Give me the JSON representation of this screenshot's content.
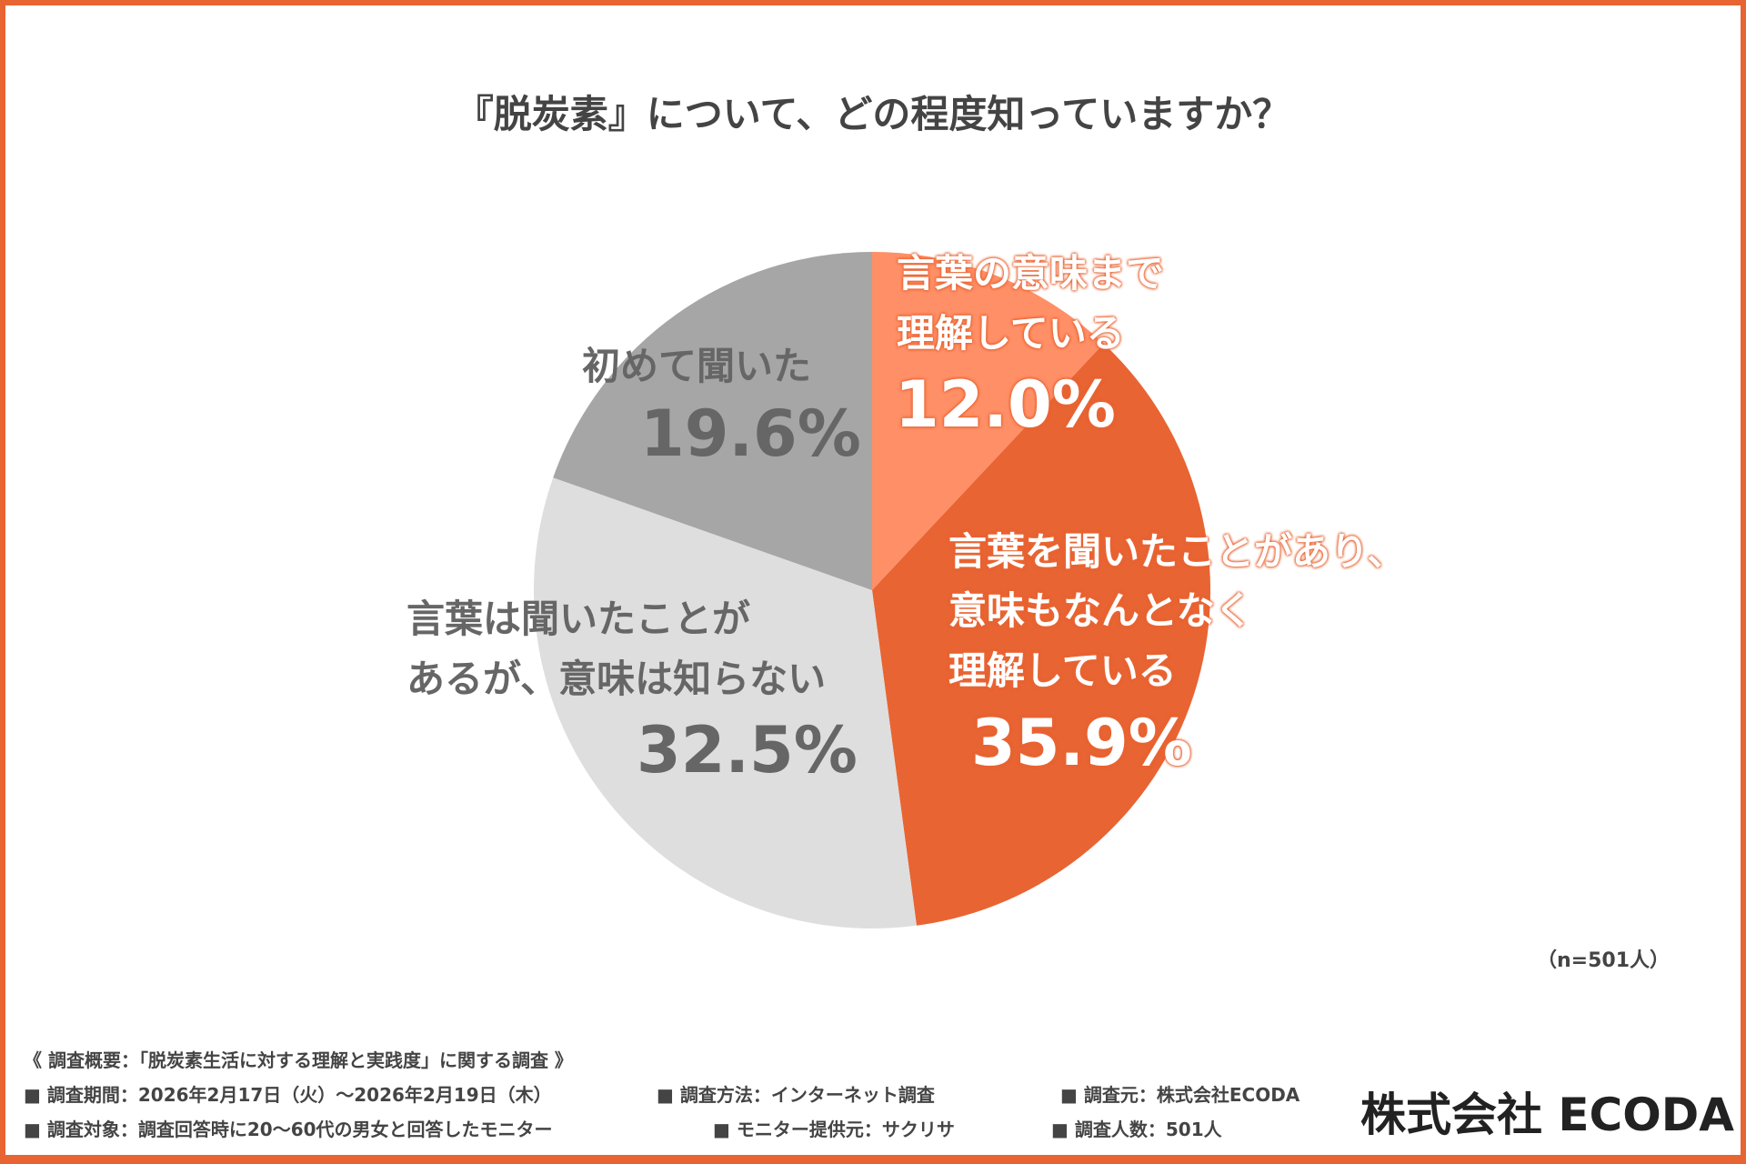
{
  "chart_data": {
    "type": "pie",
    "title": "『脱炭素』について、どの程度知っていますか？",
    "start": "top, clockwise",
    "slices": [
      {
        "label_lines": [
          "言葉の意味まで",
          "理解している"
        ],
        "value": 12.0,
        "value_label": "12.0%",
        "color": "#FF8F66"
      },
      {
        "label_lines": [
          "言葉を聞いたことがあり、",
          "意味もなんとなく",
          "理解している"
        ],
        "value": 35.9,
        "value_label": "35.9%",
        "color": "#E86433"
      },
      {
        "label_lines": [
          "言葉は聞いたことが",
          "あるが、意味は知らない"
        ],
        "value": 32.5,
        "value_label": "32.5%",
        "color": "#DEDEDE"
      },
      {
        "label_lines": [
          "初めて聞いた"
        ],
        "value": 19.6,
        "value_label": "19.6%",
        "color": "#A6A6A6"
      }
    ],
    "sample": "（n=501人）"
  },
  "footer": {
    "overview": "《 調査概要：「脱炭素生活に対する理解と実践度」に関する調査 》",
    "period": "■ 調査期間：2026年2月17日（火）〜2026年2月19日（木）",
    "method": "■ 調査方法：インターネット調査",
    "source": "■ 調査元：株式会社ECODA",
    "target": "■ 調査対象：調査回答時に20〜60代の男女と回答したモニター",
    "provider": "■ モニター提供元：サクリサ",
    "count": "■ 調査人数：501人"
  },
  "logo": "株式会社 ECODA"
}
